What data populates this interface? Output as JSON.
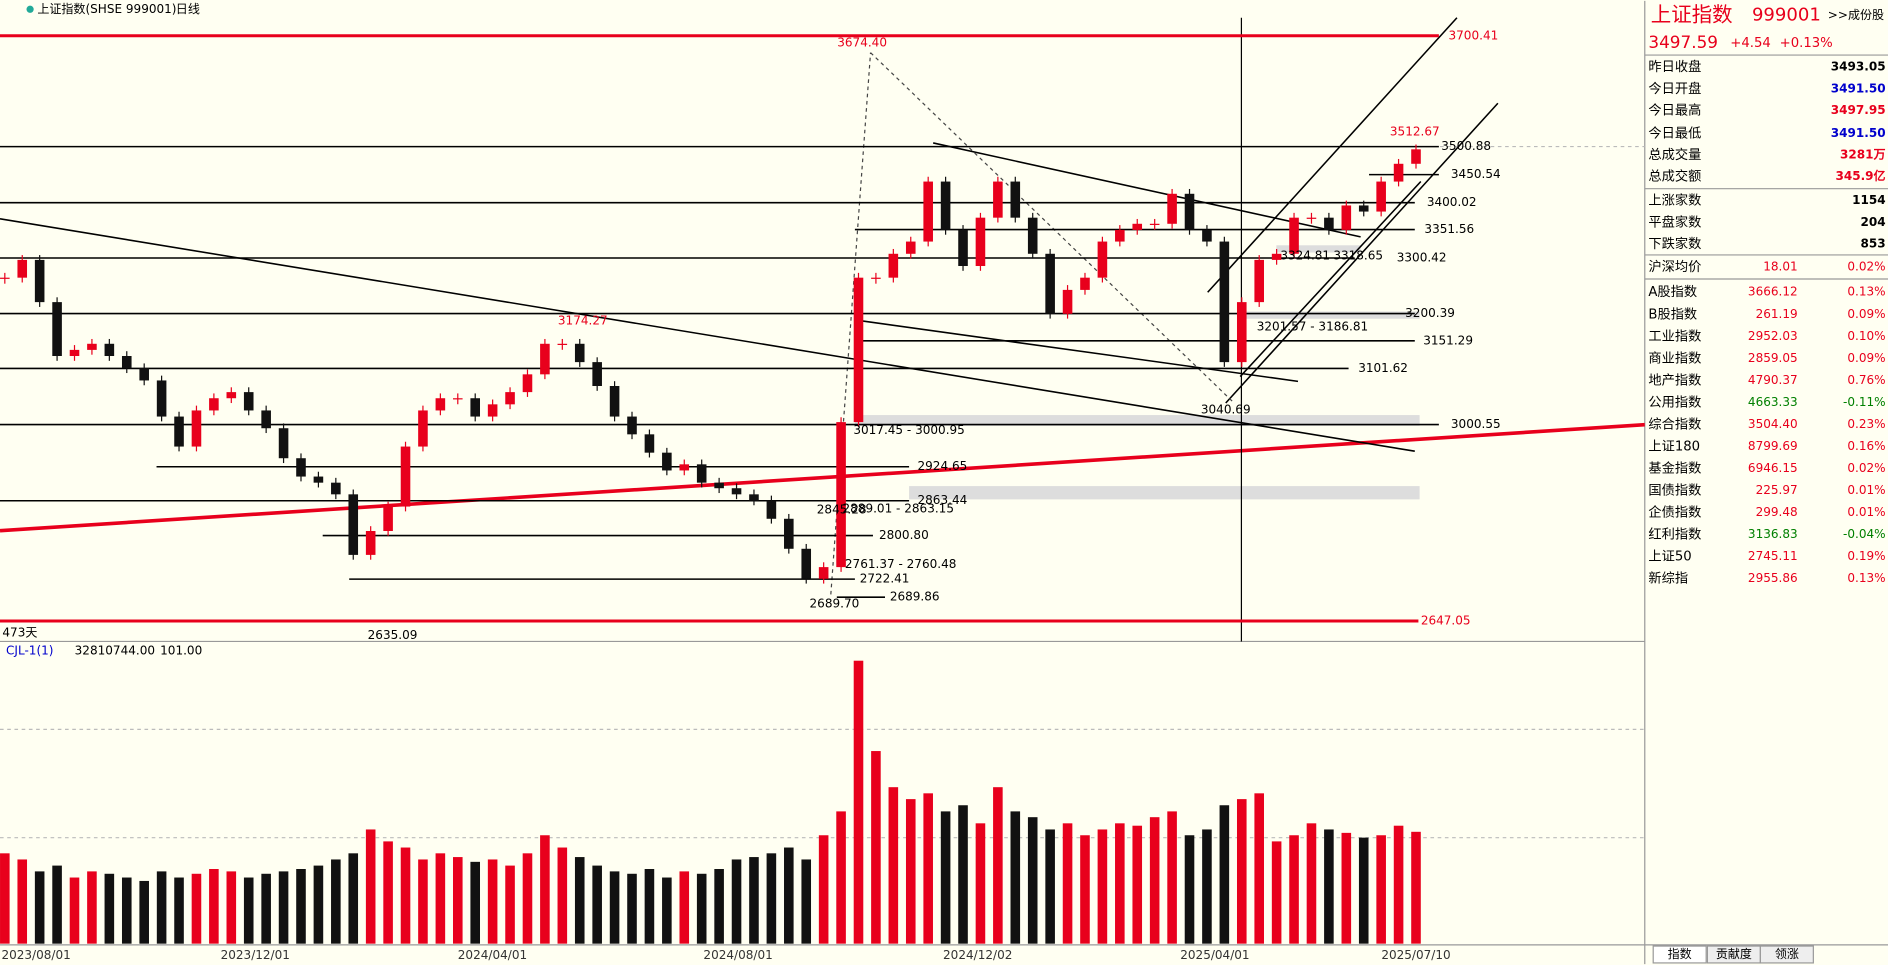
{
  "header": {
    "title": "上证指数(SHSE 999001)",
    "period": "日线"
  },
  "chart": {
    "type": "candlestick",
    "ylim": [
      2647.05,
      3700.41
    ],
    "levels": [
      {
        "value": 3700.41,
        "label": "3700.41",
        "color": "#e8001c"
      },
      {
        "value": 3500.88,
        "label": "3500.88",
        "color": "#000000"
      },
      {
        "value": 3450.54,
        "label": "3450.54",
        "color": "#000000"
      },
      {
        "value": 3400.02,
        "label": "3400.02",
        "color": "#000000"
      },
      {
        "value": 3351.56,
        "label": "3351.56",
        "color": "#000000"
      },
      {
        "value": 3300.42,
        "label": "3300.42",
        "color": "#000000"
      },
      {
        "value": 3200.39,
        "label": "3200.39",
        "color": "#000000"
      },
      {
        "value": 3151.29,
        "label": "3151.29",
        "color": "#000000"
      },
      {
        "value": 3101.62,
        "label": "3101.62",
        "color": "#000000"
      },
      {
        "value": 3000.55,
        "label": "3000.55",
        "color": "#000000"
      },
      {
        "value": 2924.65,
        "label": "2924.65",
        "color": "#000000"
      },
      {
        "value": 2863.44,
        "label": "2863.44",
        "color": "#000000"
      },
      {
        "value": 2800.8,
        "label": "2800.80",
        "color": "#000000"
      },
      {
        "value": 2722.41,
        "label": "2722.41",
        "color": "#000000"
      },
      {
        "value": 2689.86,
        "label": "2689.86",
        "color": "#000000"
      },
      {
        "value": 2647.05,
        "label": "2647.05",
        "color": "#e8001c"
      }
    ],
    "annotations": [
      "3674.40",
      "3174.27",
      "3512.67",
      "2635.09",
      "2689.70",
      "3040.69",
      "3201.57 - 3186.81",
      "3017.45 - 3000.95",
      "2761.37 - 2760.48",
      "2889.01 - 2863.15",
      "2845.28",
      "3324.81",
      "3318.65"
    ],
    "closes": [
      3265,
      3297,
      3221,
      3124,
      3135,
      3146,
      3124,
      3102,
      3080,
      3015,
      2961,
      3026,
      3048,
      3059,
      3026,
      2994,
      2940,
      2907,
      2896,
      2875,
      2766,
      2809,
      2853,
      2961,
      3026,
      3048,
      3048,
      3015,
      3037,
      3059,
      3091,
      3146,
      3146,
      3113,
      3070,
      3015,
      2983,
      2950,
      2918,
      2929,
      2896,
      2886,
      2875,
      2864,
      2831,
      2777,
      2723,
      2744,
      3005,
      3265,
      3265,
      3308,
      3330,
      3438,
      3351,
      3286,
      3373,
      3438,
      3373,
      3308,
      3200,
      3243,
      3265,
      3330,
      3351,
      3362,
      3362,
      3416,
      3351,
      3330,
      3113,
      3221,
      3297,
      3308,
      3373,
      3373,
      3351,
      3395,
      3384,
      3438,
      3470,
      3496
    ],
    "days_label": "473天",
    "date_labels": [
      "2023/08/01",
      "2023/12/01",
      "2024/04/01",
      "2024/08/01",
      "2024/12/02",
      "2025/04/01",
      "2025/07/10"
    ],
    "volume": {
      "name": "CJL-1(1)",
      "value_text": "32810744.00",
      "param": "101.00",
      "vlim": [
        0,
        83000000
      ],
      "values": [
        26500000,
        24700000,
        21200000,
        22900000,
        19400000,
        21200000,
        20500000,
        19400000,
        18400000,
        21200000,
        19400000,
        20500000,
        21900000,
        21200000,
        19400000,
        20500000,
        21200000,
        21900000,
        22900000,
        24700000,
        26500000,
        33500000,
        30000000,
        28200000,
        24700000,
        26500000,
        25400000,
        24000000,
        24700000,
        22900000,
        26500000,
        31800000,
        28200000,
        25400000,
        22900000,
        21200000,
        20500000,
        21900000,
        19400000,
        21200000,
        20500000,
        21900000,
        24700000,
        25400000,
        26500000,
        28200000,
        24700000,
        31800000,
        38800000,
        83000000,
        56500000,
        45900000,
        42400000,
        44100000,
        38800000,
        40600000,
        35300000,
        45900000,
        38800000,
        37100000,
        33500000,
        35300000,
        31800000,
        33500000,
        35300000,
        34600000,
        37100000,
        38800000,
        31800000,
        33500000,
        40600000,
        42400000,
        44100000,
        30000000,
        31800000,
        35300000,
        33500000,
        32500000,
        31100000,
        31800000,
        34600000,
        32810744
      ]
    }
  },
  "quote": {
    "name": "上证指数",
    "code": "999001",
    "link": ">>成份股",
    "price": "3497.59",
    "change": "+4.54",
    "pct": "+0.13%"
  },
  "stats": [
    {
      "label": "昨日收盘",
      "value": "3493.05",
      "color": "#000000"
    },
    {
      "label": "今日开盘",
      "value": "3491.50",
      "color": "#0000cc"
    },
    {
      "label": "今日最高",
      "value": "3497.95",
      "color": "#e8001c"
    },
    {
      "label": "今日最低",
      "value": "3491.50",
      "color": "#0000cc"
    },
    {
      "label": "总成交量",
      "value": "3281万",
      "color": "#e8001c"
    },
    {
      "label": "总成交额",
      "value": "345.9亿",
      "color": "#e8001c"
    },
    {
      "label": "上涨家数",
      "value": "1154",
      "color": "#000000"
    },
    {
      "label": "平盘家数",
      "value": "204",
      "color": "#000000"
    },
    {
      "label": "下跌家数",
      "value": "853",
      "color": "#000000"
    }
  ],
  "indices": [
    {
      "label": "沪深均价",
      "value": "18.01",
      "pct": "0.02%",
      "color": "#e8001c"
    },
    {
      "label": "A股指数",
      "value": "3666.12",
      "pct": "0.13%",
      "color": "#e8001c"
    },
    {
      "label": "B股指数",
      "value": "261.19",
      "pct": "0.09%",
      "color": "#e8001c"
    },
    {
      "label": "工业指数",
      "value": "2952.03",
      "pct": "0.10%",
      "color": "#e8001c"
    },
    {
      "label": "商业指数",
      "value": "2859.05",
      "pct": "0.09%",
      "color": "#e8001c"
    },
    {
      "label": "地产指数",
      "value": "4790.37",
      "pct": "0.76%",
      "color": "#e8001c"
    },
    {
      "label": "公用指数",
      "value": "4663.33",
      "pct": "-0.11%",
      "color": "#008000"
    },
    {
      "label": "综合指数",
      "value": "3504.40",
      "pct": "0.23%",
      "color": "#e8001c"
    },
    {
      "label": "上证180",
      "value": "8799.69",
      "pct": "0.16%",
      "color": "#e8001c"
    },
    {
      "label": "基金指数",
      "value": "6946.15",
      "pct": "0.02%",
      "color": "#e8001c"
    },
    {
      "label": "国债指数",
      "value": "225.97",
      "pct": "0.01%",
      "color": "#e8001c"
    },
    {
      "label": "企债指数",
      "value": "299.48",
      "pct": "0.01%",
      "color": "#e8001c"
    },
    {
      "label": "红利指数",
      "value": "3136.83",
      "pct": "-0.04%",
      "color": "#008000"
    },
    {
      "label": "上证50",
      "value": "2745.11",
      "pct": "0.19%",
      "color": "#e8001c"
    },
    {
      "label": "新综指",
      "value": "2955.86",
      "pct": "0.13%",
      "color": "#e8001c"
    }
  ],
  "tabs": [
    "指数",
    "贡献度",
    "领涨"
  ]
}
